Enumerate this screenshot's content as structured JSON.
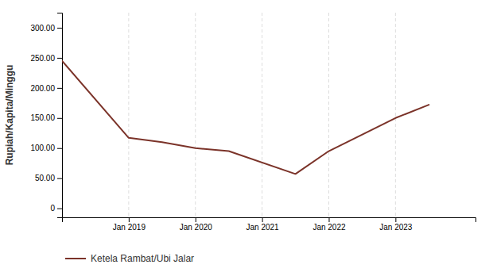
{
  "chart_data": {
    "type": "line",
    "x": [
      2018.0,
      2019.0,
      2019.5,
      2020.0,
      2020.5,
      2021.5,
      2022.0,
      2023.0,
      2023.5
    ],
    "series": [
      {
        "name": "Ketela Rambat/Ubi Jalar",
        "color": "#7b3329",
        "values": [
          245.0,
          117.0,
          110.0,
          100.0,
          95.0,
          57.0,
          95.0,
          150.0,
          172.0
        ]
      }
    ],
    "xlim": [
      2018.0,
      2024.2
    ],
    "xticks": [
      {
        "value": 2019,
        "label": "Jan 2019"
      },
      {
        "value": 2020,
        "label": "Jan 2020"
      },
      {
        "value": 2021,
        "label": "Jan 2021"
      },
      {
        "value": 2022,
        "label": "Jan 2022"
      },
      {
        "value": 2023,
        "label": "Jan 2023"
      }
    ],
    "ylim": [
      -15,
      325
    ],
    "yticks": [
      0,
      {
        "value": 50.0,
        "label": "50.00"
      },
      {
        "value": 100.0,
        "label": "100.00"
      },
      {
        "value": 150.0,
        "label": "150.00"
      },
      {
        "value": 200.0,
        "label": "200.00"
      },
      {
        "value": 250.0,
        "label": "250.00"
      },
      {
        "value": 300.0,
        "label": "300.00"
      }
    ],
    "ylabel": "Rupiah/Kapita/Minggu",
    "grid": "x",
    "legend": "bottom"
  }
}
